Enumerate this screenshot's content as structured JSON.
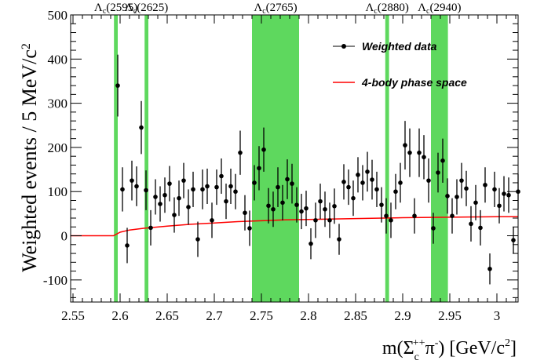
{
  "chart_data": {
    "type": "scatter",
    "xlabel": "m(Σ_c^{++}π^{-}) [GeV/c^{2}]",
    "ylabel": "Weighted events / 5 MeV/c^{2}",
    "xlim": [
      2.5475,
      3.0225
    ],
    "ylim": [
      -150,
      500
    ],
    "x_ticks": [
      "2.55",
      "2.6",
      "2.65",
      "2.7",
      "2.75",
      "2.8",
      "2.85",
      "2.9",
      "2.95",
      "3"
    ],
    "y_ticks": [
      "-100",
      "0",
      "100",
      "200",
      "300",
      "400",
      "500"
    ],
    "grid": false,
    "legend_position": "top-right",
    "colors": {
      "data": "#000000",
      "phase_space": "#ff0000",
      "bands": "#5ed85e"
    },
    "legend": [
      {
        "label": "Weighted data",
        "kind": "points"
      },
      {
        "label": "4-body phase space",
        "kind": "line"
      }
    ],
    "resonance_bands": [
      {
        "label": "Λ_c(2595)",
        "x": [
          2.5935,
          2.5975
        ]
      },
      {
        "label": "Λ_c(2625)",
        "x": [
          2.626,
          2.63
        ]
      },
      {
        "label": "Λ_c(2765)",
        "x": [
          2.74,
          2.79
        ]
      },
      {
        "label": "Λ_c(2880)",
        "x": [
          2.8815,
          2.8855
        ]
      },
      {
        "label": "Λ_c(2940)",
        "x": [
          2.93,
          2.948
        ]
      }
    ],
    "series": [
      {
        "name": "Weighted data",
        "points": [
          {
            "x": 2.5975,
            "y": 340,
            "err": 70
          },
          {
            "x": 2.6025,
            "y": 105,
            "err": 50
          },
          {
            "x": 2.6075,
            "y": -22,
            "err": 40
          },
          {
            "x": 2.6125,
            "y": 125,
            "err": 45
          },
          {
            "x": 2.6175,
            "y": 112,
            "err": 45
          },
          {
            "x": 2.6225,
            "y": 245,
            "err": 60
          },
          {
            "x": 2.6275,
            "y": 103,
            "err": 45
          },
          {
            "x": 2.6325,
            "y": 18,
            "err": 40
          },
          {
            "x": 2.6375,
            "y": 88,
            "err": 40
          },
          {
            "x": 2.6425,
            "y": 72,
            "err": 40
          },
          {
            "x": 2.6475,
            "y": 92,
            "err": 40
          },
          {
            "x": 2.6525,
            "y": 118,
            "err": 40
          },
          {
            "x": 2.6575,
            "y": 47,
            "err": 40
          },
          {
            "x": 2.6625,
            "y": 85,
            "err": 40
          },
          {
            "x": 2.6675,
            "y": 125,
            "err": 40
          },
          {
            "x": 2.6725,
            "y": 65,
            "err": 40
          },
          {
            "x": 2.6775,
            "y": 105,
            "err": 40
          },
          {
            "x": 2.6825,
            "y": -8,
            "err": 40
          },
          {
            "x": 2.6875,
            "y": 105,
            "err": 45
          },
          {
            "x": 2.6925,
            "y": 112,
            "err": 40
          },
          {
            "x": 2.6975,
            "y": 35,
            "err": 40
          },
          {
            "x": 2.7025,
            "y": 110,
            "err": 40
          },
          {
            "x": 2.7075,
            "y": 135,
            "err": 40
          },
          {
            "x": 2.7125,
            "y": 78,
            "err": 40
          },
          {
            "x": 2.7175,
            "y": 112,
            "err": 40
          },
          {
            "x": 2.7225,
            "y": 100,
            "err": 40
          },
          {
            "x": 2.7275,
            "y": 188,
            "err": 50
          },
          {
            "x": 2.7325,
            "y": 52,
            "err": 40
          },
          {
            "x": 2.7375,
            "y": 17,
            "err": 40
          },
          {
            "x": 2.7425,
            "y": 120,
            "err": 40
          },
          {
            "x": 2.7475,
            "y": 153,
            "err": 50
          },
          {
            "x": 2.7525,
            "y": 195,
            "err": 50
          },
          {
            "x": 2.7575,
            "y": 68,
            "err": 40
          },
          {
            "x": 2.7625,
            "y": 60,
            "err": 40
          },
          {
            "x": 2.7675,
            "y": 110,
            "err": 45
          },
          {
            "x": 2.7725,
            "y": 75,
            "err": 40
          },
          {
            "x": 2.7775,
            "y": 128,
            "err": 45
          },
          {
            "x": 2.7825,
            "y": 118,
            "err": 45
          },
          {
            "x": 2.7875,
            "y": 70,
            "err": 40
          },
          {
            "x": 2.7925,
            "y": 55,
            "err": 40
          },
          {
            "x": 2.7975,
            "y": 62,
            "err": 40
          },
          {
            "x": 2.8025,
            "y": -18,
            "err": 35
          },
          {
            "x": 2.8075,
            "y": 35,
            "err": 40
          },
          {
            "x": 2.8125,
            "y": 78,
            "err": 40
          },
          {
            "x": 2.8175,
            "y": 60,
            "err": 40
          },
          {
            "x": 2.8225,
            "y": 35,
            "err": 40
          },
          {
            "x": 2.8275,
            "y": 67,
            "err": 40
          },
          {
            "x": 2.8325,
            "y": -8,
            "err": 35
          },
          {
            "x": 2.8375,
            "y": 122,
            "err": 40
          },
          {
            "x": 2.8425,
            "y": 110,
            "err": 40
          },
          {
            "x": 2.8475,
            "y": 85,
            "err": 40
          },
          {
            "x": 2.8525,
            "y": 138,
            "err": 40
          },
          {
            "x": 2.8575,
            "y": 120,
            "err": 40
          },
          {
            "x": 2.8625,
            "y": 145,
            "err": 45
          },
          {
            "x": 2.8675,
            "y": 127,
            "err": 45
          },
          {
            "x": 2.8725,
            "y": 105,
            "err": 40
          },
          {
            "x": 2.8775,
            "y": 70,
            "err": 40
          },
          {
            "x": 2.8825,
            "y": 45,
            "err": 40
          },
          {
            "x": 2.8875,
            "y": 35,
            "err": 40
          },
          {
            "x": 2.8925,
            "y": 100,
            "err": 40
          },
          {
            "x": 2.8975,
            "y": 120,
            "err": 45
          },
          {
            "x": 2.9025,
            "y": 205,
            "err": 55
          },
          {
            "x": 2.9075,
            "y": 188,
            "err": 55
          },
          {
            "x": 2.9125,
            "y": 45,
            "err": 40
          },
          {
            "x": 2.9175,
            "y": 188,
            "err": 55
          },
          {
            "x": 2.9225,
            "y": 178,
            "err": 50
          },
          {
            "x": 2.9275,
            "y": 125,
            "err": 50
          },
          {
            "x": 2.9325,
            "y": 17,
            "err": 35
          },
          {
            "x": 2.9375,
            "y": 143,
            "err": 45
          },
          {
            "x": 2.9425,
            "y": 170,
            "err": 50
          },
          {
            "x": 2.9475,
            "y": 90,
            "err": 40
          },
          {
            "x": 2.9525,
            "y": 45,
            "err": 40
          },
          {
            "x": 2.9575,
            "y": 88,
            "err": 40
          },
          {
            "x": 2.9625,
            "y": 125,
            "err": 40
          },
          {
            "x": 2.9675,
            "y": 107,
            "err": 40
          },
          {
            "x": 2.9725,
            "y": 27,
            "err": 40
          },
          {
            "x": 2.9775,
            "y": 75,
            "err": 40
          },
          {
            "x": 2.9825,
            "y": 18,
            "err": 40
          },
          {
            "x": 2.9875,
            "y": 115,
            "err": 40
          },
          {
            "x": 2.9925,
            "y": -75,
            "err": 35
          },
          {
            "x": 2.9975,
            "y": 105,
            "err": 40
          },
          {
            "x": 3.0025,
            "y": 68,
            "err": 40
          },
          {
            "x": 3.0075,
            "y": 95,
            "err": 40
          },
          {
            "x": 3.0125,
            "y": 92,
            "err": 40
          },
          {
            "x": 3.0175,
            "y": -10,
            "err": 30
          },
          {
            "x": 3.0225,
            "y": 100,
            "err": 40
          }
        ]
      },
      {
        "name": "4-body phase space",
        "line": [
          {
            "x": 2.5475,
            "y": 0
          },
          {
            "x": 2.593,
            "y": 0
          },
          {
            "x": 2.6,
            "y": 8
          },
          {
            "x": 2.61,
            "y": 13
          },
          {
            "x": 2.625,
            "y": 17
          },
          {
            "x": 2.65,
            "y": 22
          },
          {
            "x": 2.675,
            "y": 26
          },
          {
            "x": 2.7,
            "y": 29
          },
          {
            "x": 2.725,
            "y": 32
          },
          {
            "x": 2.75,
            "y": 34
          },
          {
            "x": 2.775,
            "y": 36
          },
          {
            "x": 2.8,
            "y": 37
          },
          {
            "x": 2.85,
            "y": 39
          },
          {
            "x": 2.9,
            "y": 41
          },
          {
            "x": 2.95,
            "y": 42
          },
          {
            "x": 3.0,
            "y": 43
          },
          {
            "x": 3.0225,
            "y": 43
          }
        ]
      }
    ]
  }
}
